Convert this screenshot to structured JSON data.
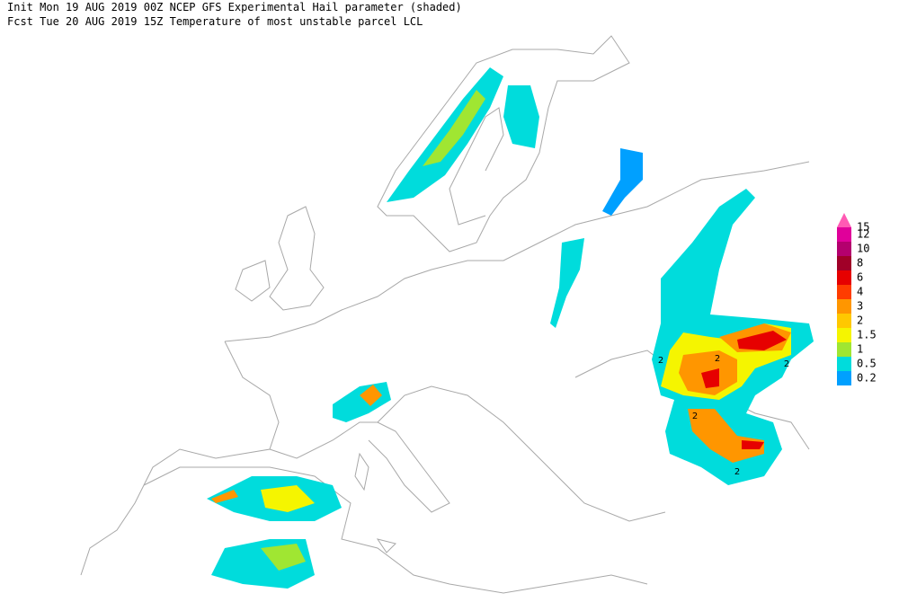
{
  "header": {
    "line1": "Init  Mon 19 AUG 2019 00Z  NCEP GFS Experimental Hail parameter (shaded)",
    "line2": "Fcst Tue 20 AUG 2019 15Z  Temperature of most unstable parcel LCL"
  },
  "legend": {
    "levels": [
      {
        "label": "15",
        "color": "#ff5ab4"
      },
      {
        "label": "12",
        "color": "#e0009a"
      },
      {
        "label": "10",
        "color": "#b4006e"
      },
      {
        "label": "8",
        "color": "#a00028"
      },
      {
        "label": "6",
        "color": "#e60000"
      },
      {
        "label": "4",
        "color": "#ff3c00"
      },
      {
        "label": "3",
        "color": "#ff9600"
      },
      {
        "label": "2",
        "color": "#ffc800"
      },
      {
        "label": "1.5",
        "color": "#f5f500"
      },
      {
        "label": "1",
        "color": "#a0e632"
      },
      {
        "label": "0.5",
        "color": "#00dcdc"
      },
      {
        "label": "0.2",
        "color": "#00a0ff"
      }
    ]
  },
  "contour_labels": [
    "2",
    "2",
    "2",
    "2",
    "2"
  ]
}
